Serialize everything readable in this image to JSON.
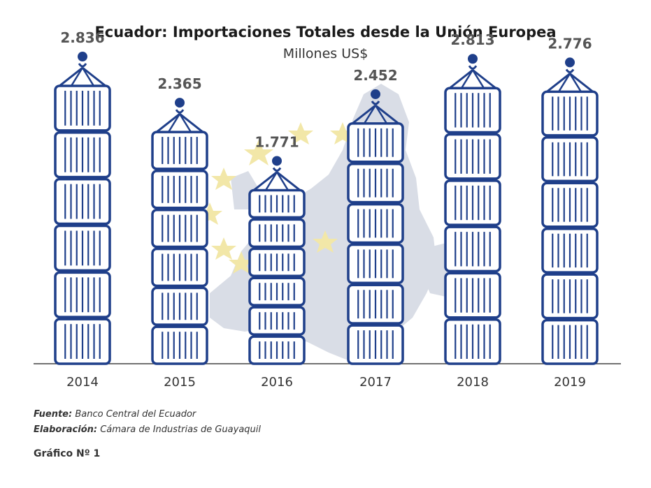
{
  "chart_data": {
    "type": "bar",
    "title": "Ecuador: Importaciones Totales desde la Unión Europea",
    "subtitle": "Millones US$",
    "categories": [
      "2014",
      "2015",
      "2016",
      "2017",
      "2018",
      "2019"
    ],
    "value_labels": [
      "2.836",
      "2.365",
      "1.771",
      "2.452",
      "2.813",
      "2.776"
    ],
    "values": [
      2836,
      2365,
      1771,
      2452,
      2813,
      2776
    ],
    "ylim": [
      0,
      3000
    ],
    "grid": false,
    "legend": "none",
    "colors": {
      "bar": "#1f3f8a",
      "label": "#555555",
      "axis": "#444444",
      "background_map": "#d9dde6",
      "stars": "#f2e7a8"
    }
  },
  "footer": {
    "source_label": "Fuente:",
    "source_text": "Banco Central del Ecuador",
    "made_label": "Elaboración:",
    "made_text": "Cámara de Industrias de Guayaquil",
    "graph_label": "Gráfico Nº 1"
  }
}
